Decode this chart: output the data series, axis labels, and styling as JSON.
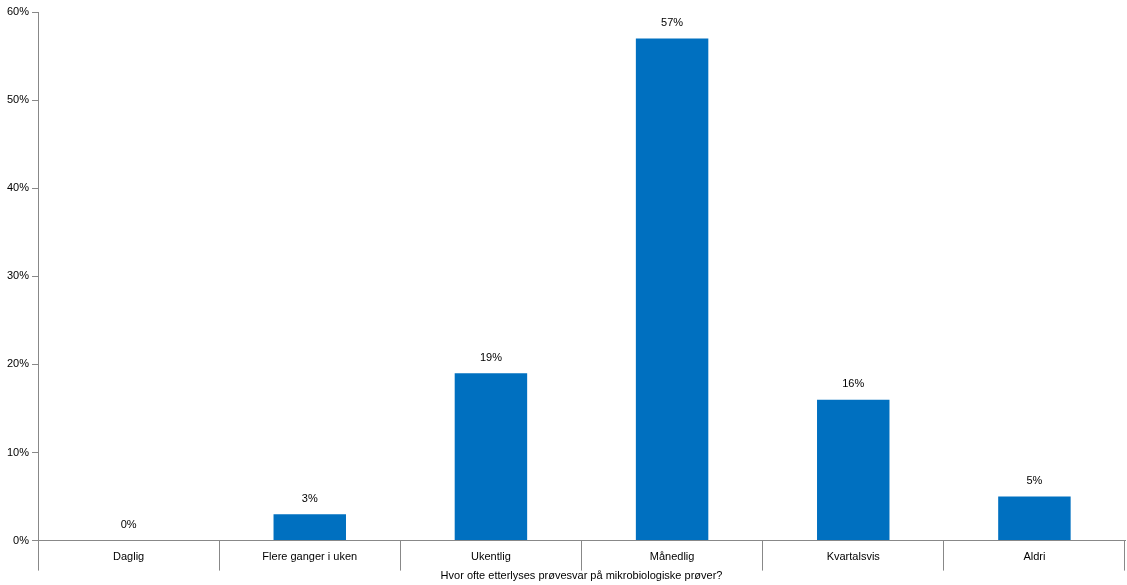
{
  "chart_data": {
    "type": "bar",
    "xlabel": "Hvor ofte etterlyses prøvesvar på mikrobiologiske prøver?",
    "categories": [
      "Daglig",
      "Flere ganger i uken",
      "Ukentlig",
      "Månedlig",
      "Kvartalsvis",
      "Aldri"
    ],
    "values": [
      0,
      3,
      19,
      57,
      16,
      5
    ],
    "value_labels": [
      "0%",
      "3%",
      "19%",
      "57%",
      "16%",
      "5%"
    ],
    "color": "#0070c0",
    "ylim": [
      0,
      60
    ],
    "yticks": [
      {
        "value": 0,
        "label": "0%"
      },
      {
        "value": 10,
        "label": "10%"
      },
      {
        "value": 20,
        "label": "20%"
      },
      {
        "value": 30,
        "label": "30%"
      },
      {
        "value": 40,
        "label": "40%"
      },
      {
        "value": 50,
        "label": "50%"
      },
      {
        "value": 60,
        "label": "60%"
      }
    ],
    "grid": false,
    "legend": false
  }
}
